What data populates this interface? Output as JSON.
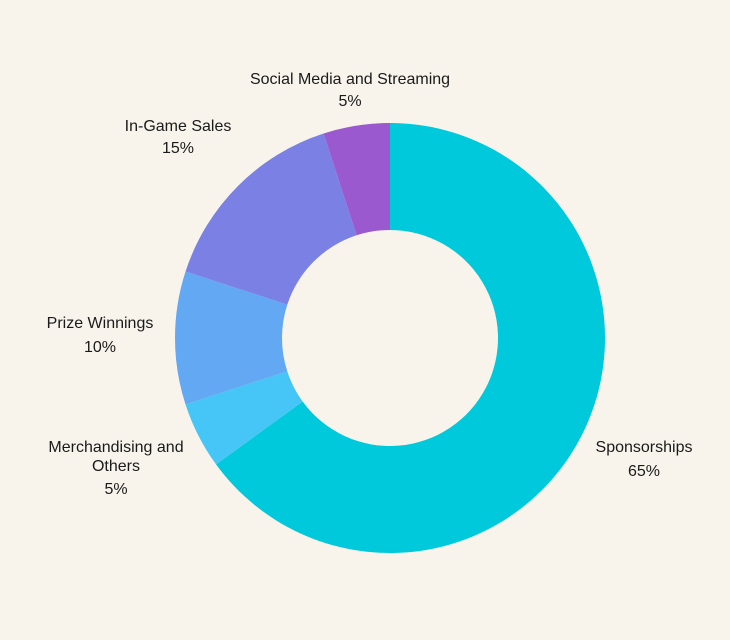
{
  "background": "#f8f4ec",
  "chart_data": {
    "type": "pie",
    "variant": "donut",
    "title": "",
    "slices": [
      {
        "label": "Sponsorships",
        "value": 65,
        "value_label": "65%",
        "color": "#00c9dc"
      },
      {
        "label": "Merchandising and Others",
        "value": 5,
        "value_label": "5%",
        "color": "#45c6f6"
      },
      {
        "label": "Prize Winnings",
        "value": 10,
        "value_label": "10%",
        "color": "#62a8f3"
      },
      {
        "label": "In-Game Sales",
        "value": 15,
        "value_label": "15%",
        "color": "#7a80e4"
      },
      {
        "label": "Social Media and Streaming",
        "value": 5,
        "value_label": "5%",
        "color": "#9b59d0"
      }
    ],
    "start_angle": "top",
    "direction": "clockwise",
    "legend": "none"
  }
}
